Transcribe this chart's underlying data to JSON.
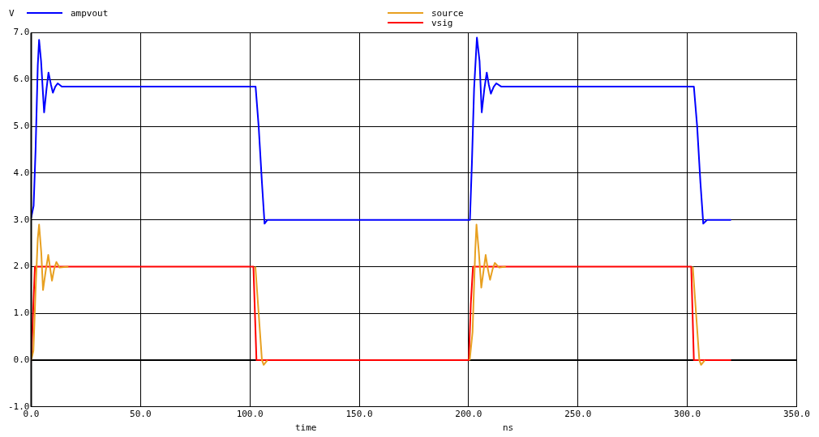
{
  "chart_data": {
    "type": "line",
    "ylabel": "V",
    "xlabel": "time",
    "annotations": [
      "ns"
    ],
    "xlim": [
      0,
      350
    ],
    "xticks": [
      {
        "value": 0,
        "label": "0.0"
      },
      {
        "value": 50,
        "label": "50.0"
      },
      {
        "value": 100,
        "label": "100.0"
      },
      {
        "value": 150,
        "label": "150.0"
      },
      {
        "value": 200,
        "label": "200.0"
      },
      {
        "value": 250,
        "label": "250.0"
      },
      {
        "value": 300,
        "label": "300.0"
      },
      {
        "value": 350,
        "label": "350.0"
      }
    ],
    "ylim": [
      -1,
      7
    ],
    "yticks": [
      {
        "value": -1,
        "label": "-1.0"
      },
      {
        "value": 0,
        "label": "0.0"
      },
      {
        "value": 1,
        "label": "1.0"
      },
      {
        "value": 2,
        "label": "2.0"
      },
      {
        "value": 3,
        "label": "3.0"
      },
      {
        "value": 4,
        "label": "4.0"
      },
      {
        "value": 5,
        "label": "5.0"
      },
      {
        "value": 6,
        "label": "6.0"
      },
      {
        "value": 7,
        "label": "7.0"
      }
    ],
    "grid": true,
    "legend": "top",
    "marker": "none",
    "line_style": "solid",
    "ref_lines": [
      {
        "axis": "y",
        "value": 0,
        "color": "#000000"
      }
    ],
    "series": [
      {
        "name": "ampvout",
        "color": "#0000ff",
        "x": [
          0,
          1.1,
          2,
          3,
          3.6,
          4.5,
          5.9,
          7,
          7.9,
          9,
          9.9,
          11,
          12.1,
          14,
          100,
          102.6,
          104,
          105.5,
          106.7,
          108,
          200,
          200.6,
          201.5,
          202.5,
          203.8,
          205,
          206,
          207.2,
          208.3,
          209.2,
          210.2,
          211.5,
          212.7,
          215,
          300,
          303,
          304.5,
          306,
          307.3,
          309,
          320
        ],
        "values": [
          3.05,
          3.3,
          4.5,
          6.3,
          6.85,
          6.4,
          5.3,
          5.8,
          6.15,
          5.9,
          5.72,
          5.85,
          5.92,
          5.85,
          5.85,
          5.85,
          5.0,
          3.8,
          2.92,
          3.0,
          3.0,
          3.0,
          4.2,
          5.8,
          6.9,
          6.4,
          5.3,
          5.8,
          6.15,
          5.9,
          5.7,
          5.85,
          5.92,
          5.85,
          5.85,
          5.85,
          5.0,
          3.8,
          2.92,
          3.0,
          3.0
        ]
      },
      {
        "name": "source",
        "color": "#e8a020",
        "x": [
          0,
          1,
          2,
          3,
          3.6,
          4.6,
          5.4,
          6.6,
          7.8,
          8.7,
          9.5,
          10.5,
          11.5,
          13,
          17,
          60,
          102.5,
          104,
          105.5,
          106.3,
          108,
          150,
          200.5,
          201.8,
          203,
          203.6,
          204.7,
          205.8,
          206.8,
          207.8,
          208.8,
          209.8,
          211,
          212,
          214,
          217,
          260,
          302.5,
          304,
          305.5,
          306.3,
          308
        ],
        "values": [
          0,
          0.2,
          1.5,
          2.6,
          2.9,
          2.3,
          1.5,
          1.9,
          2.25,
          1.95,
          1.7,
          1.95,
          2.1,
          1.98,
          2.0,
          null,
          2.0,
          1.0,
          0,
          -0.1,
          0,
          null,
          0,
          0.6,
          2.3,
          2.9,
          2.3,
          1.55,
          1.9,
          2.25,
          1.95,
          1.72,
          1.95,
          2.08,
          1.98,
          2.0,
          null,
          2.0,
          1.0,
          0,
          -0.1,
          0
        ]
      },
      {
        "name": "vsig",
        "color": "#ff0000",
        "x": [
          0,
          0.5,
          1,
          1.7,
          101.6,
          103,
          200.1,
          201,
          202,
          301.8,
          303,
          320
        ],
        "values": [
          0,
          0.6,
          1.2,
          2.0,
          2.0,
          0,
          0,
          1.2,
          2.0,
          2.0,
          0,
          0
        ]
      }
    ]
  }
}
